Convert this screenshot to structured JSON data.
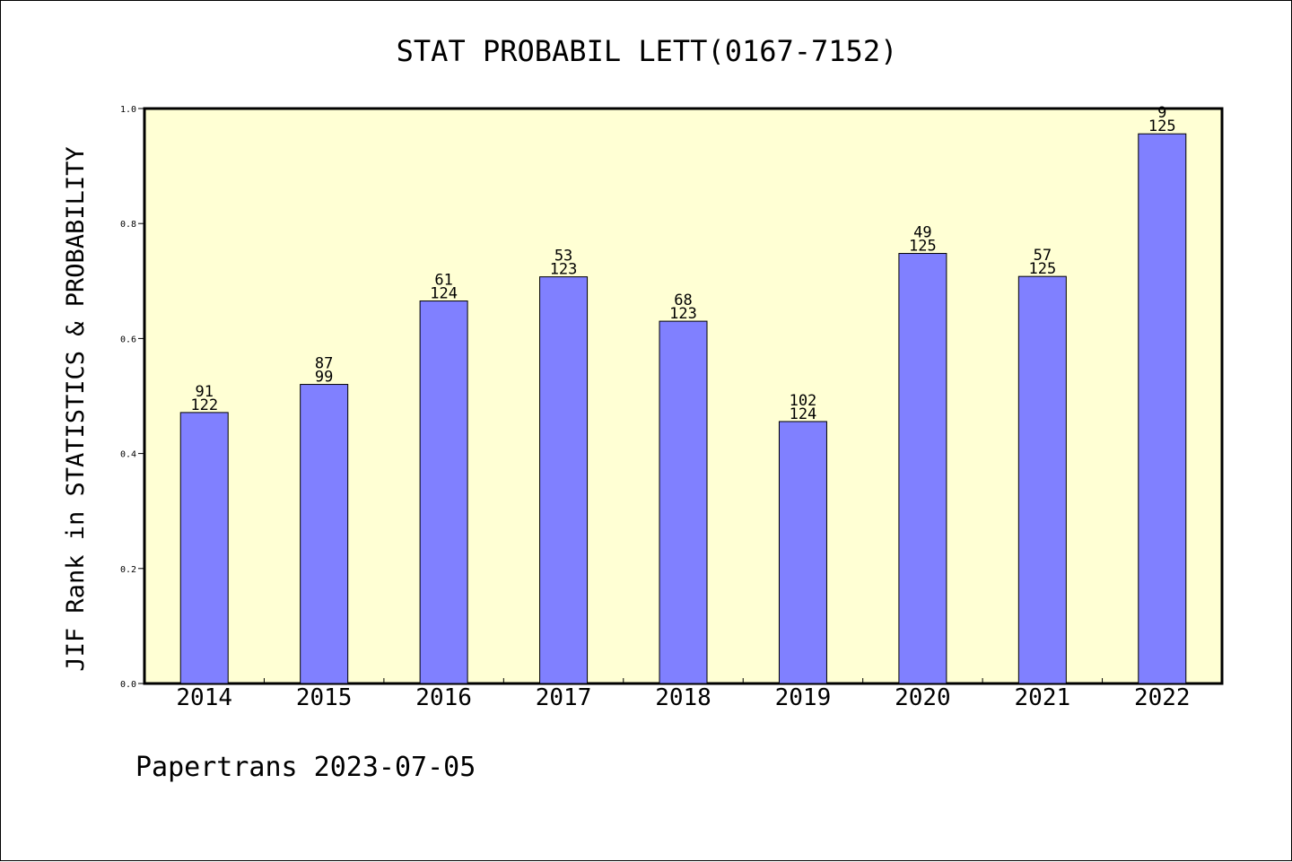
{
  "chart_data": {
    "type": "bar",
    "title": "STAT PROBABIL LETT(0167-7152)",
    "ylabel": "JIF Rank in STATISTICS & PROBABILITY",
    "xlabel": "",
    "categories": [
      "2014",
      "2015",
      "2016",
      "2017",
      "2018",
      "2019",
      "2020",
      "2021",
      "2022"
    ],
    "values": [
      0.4713,
      0.5202,
      0.6653,
      0.7073,
      0.6301,
      0.4556,
      0.748,
      0.708,
      0.956
    ],
    "rank_labels": [
      "91",
      "87",
      "61",
      "53",
      "68",
      "102",
      "49",
      "57",
      "9"
    ],
    "total_labels": [
      "122",
      "99",
      "124",
      "123",
      "123",
      "124",
      "125",
      "125",
      "125"
    ],
    "ylim": [
      0,
      1.0
    ],
    "yticks": [
      "0.0",
      "0.2",
      "0.4",
      "0.6",
      "0.8",
      "1.0"
    ],
    "grid": false,
    "legend": "none",
    "colors": {
      "plot_background": "#ffffd4",
      "bar_fill": "#8080ff",
      "bar_stroke": "#000000",
      "axis": "#000000"
    }
  },
  "footer": {
    "text": "Papertrans 2023-07-05"
  }
}
